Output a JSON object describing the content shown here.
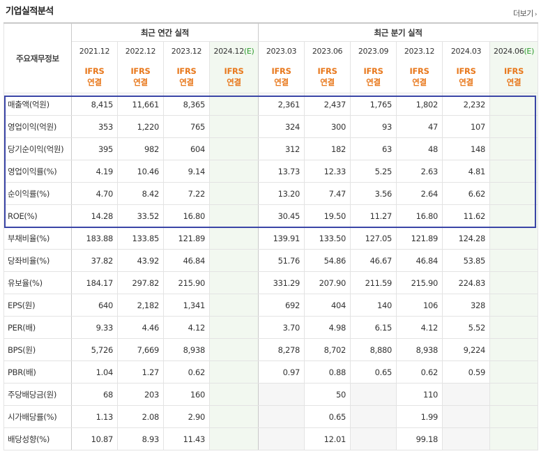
{
  "title": "기업실적분석",
  "more_link": "더보기",
  "header": {
    "annual_label": "최근 연간 실적",
    "quarter_label": "최근 분기 실적",
    "row_header": "주요재무정보",
    "annual_periods": [
      "2021.12",
      "2022.12",
      "2023.12"
    ],
    "annual_estimate": {
      "period": "2024.12",
      "mark": "(E)"
    },
    "quarter_periods": [
      "2023.03",
      "2023.06",
      "2023.09",
      "2023.12",
      "2024.03"
    ],
    "quarter_estimate": {
      "period": "2024.06",
      "mark": "(E)"
    },
    "ifrs_line1": "IFRS",
    "ifrs_line2": "연결"
  },
  "rows": [
    {
      "label": "매출액(억원)",
      "annual": [
        "8,415",
        "11,661",
        "8,365",
        ""
      ],
      "quarter": [
        "2,361",
        "2,437",
        "1,765",
        "1,802",
        "2,232",
        ""
      ]
    },
    {
      "label": "영업이익(억원)",
      "annual": [
        "353",
        "1,220",
        "765",
        ""
      ],
      "quarter": [
        "324",
        "300",
        "93",
        "47",
        "107",
        ""
      ]
    },
    {
      "label": "당기순이익(억원)",
      "annual": [
        "395",
        "982",
        "604",
        ""
      ],
      "quarter": [
        "312",
        "182",
        "63",
        "48",
        "148",
        ""
      ]
    },
    {
      "label": "영업이익률(%)",
      "annual": [
        "4.19",
        "10.46",
        "9.14",
        ""
      ],
      "quarter": [
        "13.73",
        "12.33",
        "5.25",
        "2.63",
        "4.81",
        ""
      ]
    },
    {
      "label": "순이익률(%)",
      "annual": [
        "4.70",
        "8.42",
        "7.22",
        ""
      ],
      "quarter": [
        "13.20",
        "7.47",
        "3.56",
        "2.64",
        "6.62",
        ""
      ]
    },
    {
      "label": "ROE(%)",
      "annual": [
        "14.28",
        "33.52",
        "16.80",
        ""
      ],
      "quarter": [
        "30.45",
        "19.50",
        "11.27",
        "16.80",
        "11.62",
        ""
      ]
    },
    {
      "label": "부채비율(%)",
      "annual": [
        "183.88",
        "133.85",
        "121.89",
        ""
      ],
      "quarter": [
        "139.91",
        "133.50",
        "127.05",
        "121.89",
        "124.28",
        ""
      ]
    },
    {
      "label": "당좌비율(%)",
      "annual": [
        "37.82",
        "43.92",
        "46.84",
        ""
      ],
      "quarter": [
        "51.76",
        "54.86",
        "46.67",
        "46.84",
        "53.85",
        ""
      ]
    },
    {
      "label": "유보율(%)",
      "annual": [
        "184.17",
        "297.82",
        "215.90",
        ""
      ],
      "quarter": [
        "331.29",
        "207.90",
        "211.59",
        "215.90",
        "224.83",
        ""
      ]
    },
    {
      "label": "EPS(원)",
      "annual": [
        "640",
        "2,182",
        "1,341",
        ""
      ],
      "quarter": [
        "692",
        "404",
        "140",
        "106",
        "328",
        ""
      ]
    },
    {
      "label": "PER(배)",
      "annual": [
        "9.33",
        "4.46",
        "4.12",
        ""
      ],
      "quarter": [
        "3.70",
        "4.98",
        "6.15",
        "4.12",
        "5.52",
        ""
      ]
    },
    {
      "label": "BPS(원)",
      "annual": [
        "5,726",
        "7,669",
        "8,938",
        ""
      ],
      "quarter": [
        "8,278",
        "8,702",
        "8,880",
        "8,938",
        "9,224",
        ""
      ]
    },
    {
      "label": "PBR(배)",
      "annual": [
        "1.04",
        "1.27",
        "0.62",
        ""
      ],
      "quarter": [
        "0.97",
        "0.88",
        "0.65",
        "0.62",
        "0.59",
        ""
      ]
    },
    {
      "label": "주당배당금(원)",
      "annual": [
        "68",
        "203",
        "160",
        ""
      ],
      "quarter": [
        "",
        "50",
        "",
        "110",
        "",
        ""
      ]
    },
    {
      "label": "시가배당률(%)",
      "annual": [
        "1.13",
        "2.08",
        "2.90",
        ""
      ],
      "quarter": [
        "",
        "0.65",
        "",
        "1.99",
        "",
        ""
      ]
    },
    {
      "label": "배당성향(%)",
      "annual": [
        "10.87",
        "8.93",
        "11.43",
        ""
      ],
      "quarter": [
        "",
        "12.01",
        "",
        "99.18",
        "",
        ""
      ]
    }
  ],
  "group_starts": [
    3,
    9,
    13
  ],
  "colors": {
    "ifrs": "#e8781c",
    "estimate_bg": "#f2f8f0",
    "highlight_border": "#3a45a6",
    "estimate_mark": "#2b9a2b"
  }
}
